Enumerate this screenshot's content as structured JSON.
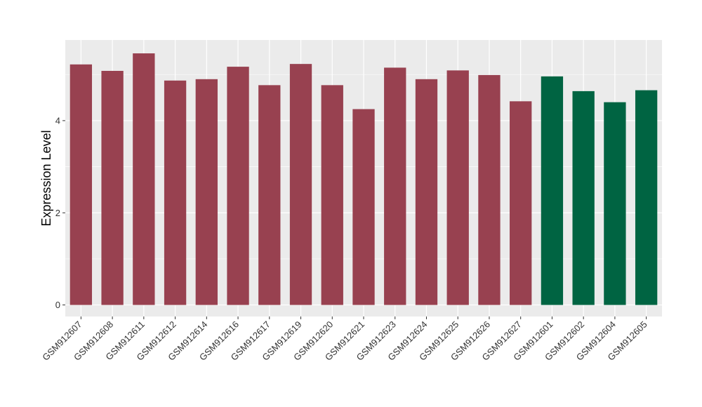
{
  "chart_data": {
    "type": "bar",
    "title": "",
    "xlabel": "",
    "ylabel": "Expression Level",
    "ylim": [
      -0.25,
      5.75
    ],
    "yticks": [
      0,
      2,
      4
    ],
    "grid": true,
    "legend": "none",
    "categories": [
      "GSM912607",
      "GSM912608",
      "GSM912611",
      "GSM912612",
      "GSM912614",
      "GSM912616",
      "GSM912617",
      "GSM912619",
      "GSM912620",
      "GSM912621",
      "GSM912623",
      "GSM912624",
      "GSM912625",
      "GSM912626",
      "GSM912627",
      "GSM912601",
      "GSM912602",
      "GSM912604",
      "GSM912605"
    ],
    "values": [
      5.22,
      5.08,
      5.46,
      4.87,
      4.9,
      5.17,
      4.77,
      5.23,
      4.77,
      4.25,
      5.15,
      4.9,
      5.09,
      4.99,
      4.42,
      4.96,
      4.64,
      4.4,
      4.66
    ],
    "groups": [
      "a",
      "a",
      "a",
      "a",
      "a",
      "a",
      "a",
      "a",
      "a",
      "a",
      "a",
      "a",
      "a",
      "a",
      "a",
      "b",
      "b",
      "b",
      "b"
    ],
    "colors": {
      "a": "#984150",
      "b": "#006442"
    },
    "panel_background": "#ebebeb",
    "grid_color": "#ffffff"
  }
}
